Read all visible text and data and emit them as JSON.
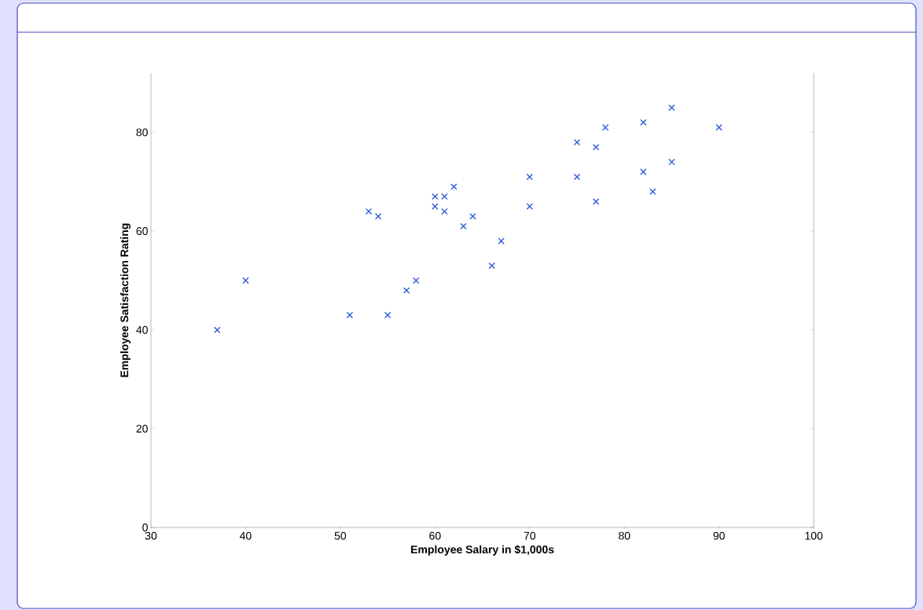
{
  "chart_data": {
    "type": "scatter",
    "xlabel": "Employee Salary in $1,000s",
    "ylabel": "Employee Satisfaction Rating",
    "x": [
      37,
      40,
      51,
      53,
      54,
      55,
      57,
      58,
      60,
      60,
      61,
      61,
      62,
      63,
      64,
      66,
      67,
      70,
      70,
      75,
      75,
      77,
      77,
      78,
      82,
      82,
      83,
      85,
      85,
      90
    ],
    "values": [
      40,
      50,
      43,
      64,
      63,
      43,
      48,
      50,
      67,
      65,
      67,
      64,
      69,
      61,
      63,
      53,
      58,
      71,
      65,
      78,
      71,
      77,
      66,
      81,
      82,
      72,
      68,
      85,
      74,
      81
    ],
    "color": "#2f5bd8",
    "marker": "cross",
    "xlim": [
      30,
      100
    ],
    "ylim": [
      0,
      92
    ],
    "xticks": [
      30,
      40,
      50,
      60,
      70,
      80,
      90,
      100
    ],
    "yticks": [
      0,
      20,
      40,
      60,
      80
    ]
  }
}
